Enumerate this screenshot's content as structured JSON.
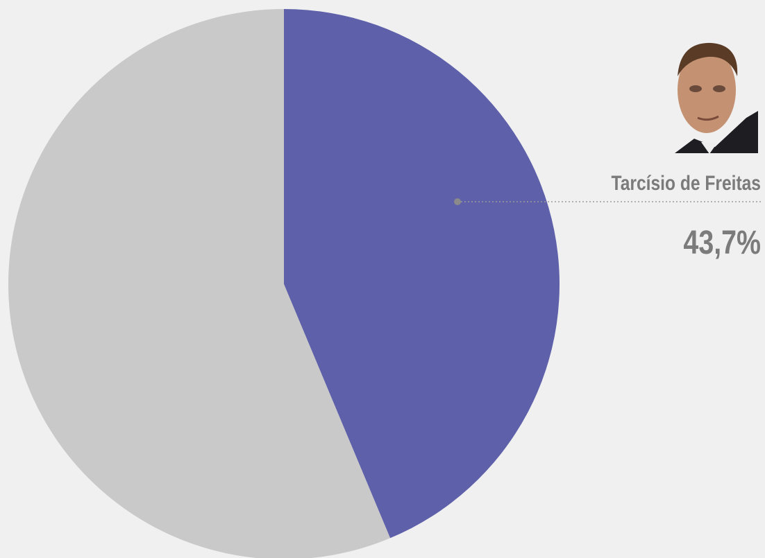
{
  "chart_data": {
    "type": "pie",
    "categories": [
      "Tarcísio de Freitas",
      null
    ],
    "values": [
      43.7,
      56.3
    ],
    "value_labels": [
      "43,7%",
      null
    ],
    "colors": [
      "#5e60aa",
      "#c9c9c9"
    ]
  }
}
